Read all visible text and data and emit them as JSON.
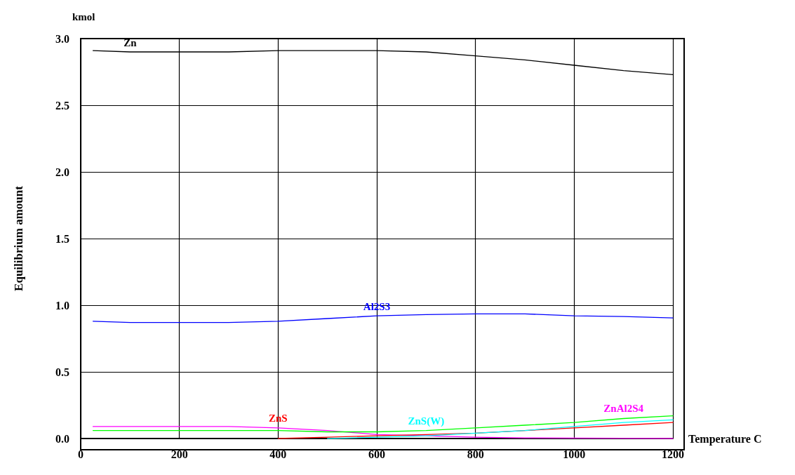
{
  "chart_data": {
    "type": "line",
    "xlabel": "Temperature C",
    "ylabel": "Equilibrium amount",
    "annotations": [
      "kmol"
    ],
    "x": [
      25,
      100,
      200,
      300,
      400,
      500,
      600,
      700,
      800,
      900,
      1000,
      1100,
      1200
    ],
    "xlim": [
      0,
      1200
    ],
    "xticks": [
      0,
      200,
      400,
      600,
      800,
      1000,
      1200
    ],
    "ylim": [
      0,
      3
    ],
    "yticks": [
      {
        "value": 0,
        "label": "0.0"
      },
      0.5,
      {
        "value": 1,
        "label": "1.0"
      },
      1.5,
      {
        "value": 2,
        "label": "2.0"
      },
      2.5,
      {
        "value": 3,
        "label": "3.0"
      }
    ],
    "grid": true,
    "legend": false,
    "marker": "none",
    "line_style": "solid",
    "series": [
      {
        "name": "Zn",
        "color": "#000000",
        "values": [
          2.91,
          2.9,
          2.9,
          2.9,
          2.91,
          2.91,
          2.91,
          2.9,
          2.87,
          2.84,
          2.8,
          2.76,
          2.73
        ]
      },
      {
        "name": "Al2S3",
        "color": "#0000ff",
        "values": [
          0.88,
          0.87,
          0.87,
          0.87,
          0.88,
          0.9,
          0.92,
          0.93,
          0.935,
          0.935,
          0.92,
          0.915,
          0.905
        ]
      },
      {
        "name": "ZnAl2S4",
        "color": "#ff00ff",
        "values": [
          0.09,
          0.09,
          0.09,
          0.09,
          0.08,
          0.06,
          0.03,
          0.02,
          0.01,
          0.005,
          0.003,
          0.002,
          0
        ]
      },
      {
        "color": "#00ff00",
        "values": [
          0.06,
          0.06,
          0.06,
          0.06,
          0.06,
          0.05,
          0.05,
          0.06,
          0.08,
          0.1,
          0.12,
          0.15,
          0.17
        ]
      },
      {
        "name": "ZnS",
        "color": "#ff0000",
        "values": [
          null,
          null,
          null,
          null,
          0,
          0.01,
          0.02,
          0.03,
          0.04,
          0.06,
          0.08,
          0.1,
          0.12
        ]
      },
      {
        "name": "ZnS(W)",
        "color": "#00ffff",
        "values": [
          null,
          null,
          null,
          null,
          null,
          0,
          0.01,
          0.02,
          0.04,
          0.06,
          0.09,
          0.12,
          0.14
        ]
      }
    ]
  }
}
